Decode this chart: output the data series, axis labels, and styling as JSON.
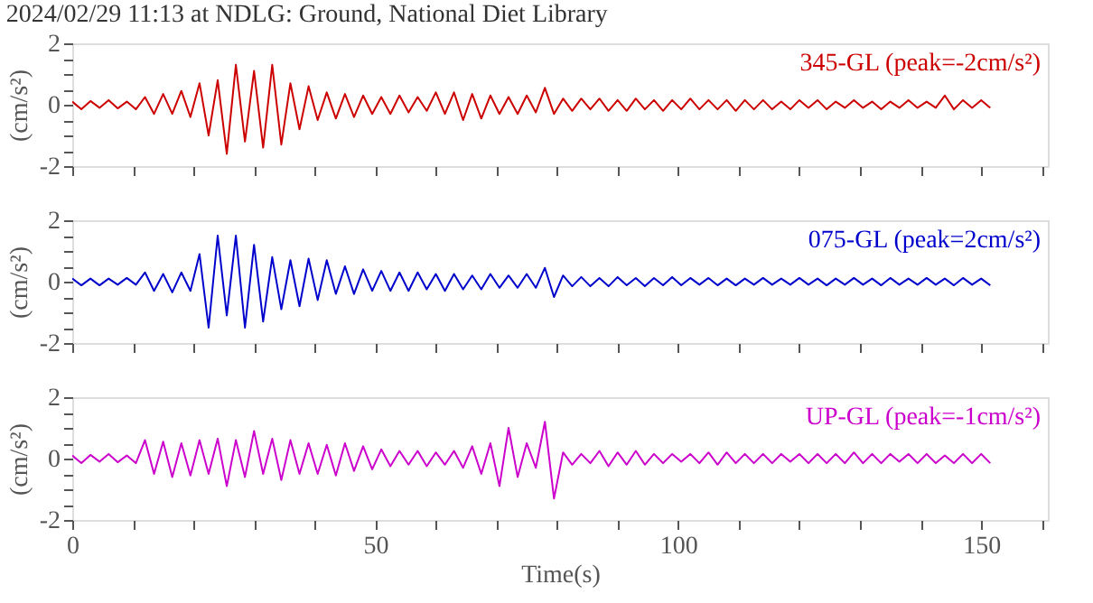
{
  "chart_data": [
    {
      "type": "line",
      "title": "2024/02/29 11:13 at NDLG: Ground, National Diet Library",
      "ylabel": "(cm/s²)",
      "annotations": [
        "345-GL (peak=-2cm/s²)"
      ],
      "tick_labels": "y",
      "xlim": [
        0,
        161
      ],
      "xticks": [
        0,
        {
          "value": 10,
          "label": null
        },
        {
          "value": 20,
          "label": null
        },
        {
          "value": 30,
          "label": null
        },
        {
          "value": 40,
          "label": null
        },
        50,
        {
          "value": 60,
          "label": null
        },
        {
          "value": 70,
          "label": null
        },
        {
          "value": 80,
          "label": null
        },
        {
          "value": 90,
          "label": null
        },
        100,
        {
          "value": 110,
          "label": null
        },
        {
          "value": 120,
          "label": null
        },
        {
          "value": 130,
          "label": null
        },
        {
          "value": 140,
          "label": null
        },
        150,
        {
          "value": 160,
          "label": null
        }
      ],
      "ylim": [
        -2,
        2
      ],
      "yticks": [
        -2,
        {
          "value": -1.5,
          "label": null
        },
        {
          "value": -1,
          "label": null
        },
        {
          "value": -0.5,
          "label": null
        },
        0,
        {
          "value": 0.5,
          "label": null
        },
        {
          "value": 1,
          "label": null
        },
        {
          "value": 1.5,
          "label": null
        },
        2
      ],
      "x": [
        0,
        1.5,
        3,
        4.5,
        6,
        7.5,
        9,
        10.5,
        12,
        13.5,
        15,
        16.5,
        18,
        19.5,
        21,
        22.5,
        24,
        25.5,
        27,
        28.5,
        30,
        31.5,
        33,
        34.5,
        36,
        37.5,
        39,
        40.5,
        42,
        43.5,
        45,
        46.5,
        48,
        49.5,
        51,
        52.5,
        54,
        55.5,
        57,
        58.5,
        60,
        61.5,
        63,
        64.5,
        66,
        67.5,
        69,
        70.5,
        72,
        73.5,
        75,
        76.5,
        78,
        79.5,
        81,
        82.5,
        84,
        85.5,
        87,
        88.5,
        90,
        91.5,
        93,
        94.5,
        96,
        97.5,
        99,
        100.5,
        102,
        103.5,
        105,
        106.5,
        108,
        109.5,
        111,
        112.5,
        114,
        115.5,
        117,
        118.5,
        120,
        121.5,
        123,
        124.5,
        126,
        127.5,
        129,
        130.5,
        132,
        133.5,
        135,
        136.5,
        138,
        139.5,
        141,
        142.5,
        144,
        145.5,
        147,
        148.5,
        150,
        151.5
      ],
      "series": [
        {
          "color": "#cc0000",
          "values": [
            0.1,
            -0.15,
            0.12,
            -0.1,
            0.15,
            -0.12,
            0.1,
            -0.15,
            0.25,
            -0.3,
            0.35,
            -0.3,
            0.45,
            -0.4,
            0.7,
            -1.0,
            0.8,
            -1.6,
            1.3,
            -1.2,
            1.1,
            -1.4,
            1.3,
            -1.3,
            0.7,
            -0.8,
            0.6,
            -0.5,
            0.4,
            -0.45,
            0.35,
            -0.4,
            0.3,
            -0.3,
            0.25,
            -0.3,
            0.3,
            -0.25,
            0.25,
            -0.2,
            0.4,
            -0.3,
            0.4,
            -0.5,
            0.35,
            -0.45,
            0.3,
            -0.3,
            0.25,
            -0.3,
            0.3,
            -0.25,
            0.55,
            -0.3,
            0.2,
            -0.2,
            0.2,
            -0.15,
            0.2,
            -0.2,
            0.15,
            -0.2,
            0.2,
            -0.15,
            0.15,
            -0.2,
            0.15,
            -0.15,
            0.2,
            -0.15,
            0.15,
            -0.15,
            0.15,
            -0.2,
            0.15,
            -0.15,
            0.15,
            -0.15,
            0.1,
            -0.15,
            0.15,
            -0.1,
            0.15,
            -0.15,
            0.1,
            -0.1,
            0.15,
            -0.1,
            0.1,
            -0.15,
            0.1,
            -0.1,
            0.15,
            -0.1,
            0.1,
            -0.1,
            0.3,
            -0.15,
            0.15,
            -0.1,
            0.15,
            -0.1
          ]
        }
      ]
    },
    {
      "type": "line",
      "ylabel": "(cm/s²)",
      "annotations": [
        "075-GL (peak=2cm/s²)"
      ],
      "tick_labels": "y",
      "xlim": [
        0,
        161
      ],
      "xticks": [
        0,
        {
          "value": 10,
          "label": null
        },
        {
          "value": 20,
          "label": null
        },
        {
          "value": 30,
          "label": null
        },
        {
          "value": 40,
          "label": null
        },
        50,
        {
          "value": 60,
          "label": null
        },
        {
          "value": 70,
          "label": null
        },
        {
          "value": 80,
          "label": null
        },
        {
          "value": 90,
          "label": null
        },
        100,
        {
          "value": 110,
          "label": null
        },
        {
          "value": 120,
          "label": null
        },
        {
          "value": 130,
          "label": null
        },
        {
          "value": 140,
          "label": null
        },
        150,
        {
          "value": 160,
          "label": null
        }
      ],
      "ylim": [
        -2,
        2
      ],
      "yticks": [
        -2,
        {
          "value": -1.5,
          "label": null
        },
        {
          "value": -1,
          "label": null
        },
        {
          "value": -0.5,
          "label": null
        },
        0,
        {
          "value": 0.5,
          "label": null
        },
        {
          "value": 1,
          "label": null
        },
        {
          "value": 1.5,
          "label": null
        },
        2
      ],
      "x": [
        0,
        1.5,
        3,
        4.5,
        6,
        7.5,
        9,
        10.5,
        12,
        13.5,
        15,
        16.5,
        18,
        19.5,
        21,
        22.5,
        24,
        25.5,
        27,
        28.5,
        30,
        31.5,
        33,
        34.5,
        36,
        37.5,
        39,
        40.5,
        42,
        43.5,
        45,
        46.5,
        48,
        49.5,
        51,
        52.5,
        54,
        55.5,
        57,
        58.5,
        60,
        61.5,
        63,
        64.5,
        66,
        67.5,
        69,
        70.5,
        72,
        73.5,
        75,
        76.5,
        78,
        79.5,
        81,
        82.5,
        84,
        85.5,
        87,
        88.5,
        90,
        91.5,
        93,
        94.5,
        96,
        97.5,
        99,
        100.5,
        102,
        103.5,
        105,
        106.5,
        108,
        109.5,
        111,
        112.5,
        114,
        115.5,
        117,
        118.5,
        120,
        121.5,
        123,
        124.5,
        126,
        127.5,
        129,
        130.5,
        132,
        133.5,
        135,
        136.5,
        138,
        139.5,
        141,
        142.5,
        144,
        145.5,
        147,
        148.5,
        150,
        151.5
      ],
      "series": [
        {
          "color": "#0000cc",
          "values": [
            0.1,
            -0.12,
            0.1,
            -0.12,
            0.1,
            -0.1,
            0.12,
            -0.1,
            0.3,
            -0.3,
            0.25,
            -0.35,
            0.3,
            -0.3,
            0.9,
            -1.5,
            1.5,
            -1.1,
            1.5,
            -1.5,
            1.2,
            -1.3,
            0.8,
            -0.9,
            0.7,
            -0.8,
            0.75,
            -0.6,
            0.7,
            -0.4,
            0.5,
            -0.4,
            0.4,
            -0.3,
            0.35,
            -0.3,
            0.3,
            -0.3,
            0.3,
            -0.25,
            0.25,
            -0.3,
            0.25,
            -0.25,
            0.2,
            -0.25,
            0.25,
            -0.2,
            0.2,
            -0.2,
            0.25,
            -0.2,
            0.45,
            -0.5,
            0.2,
            -0.15,
            0.15,
            -0.15,
            0.12,
            -0.15,
            0.15,
            -0.12,
            0.12,
            -0.15,
            0.12,
            -0.12,
            0.15,
            -0.12,
            0.12,
            -0.1,
            0.12,
            -0.12,
            0.1,
            -0.12,
            0.1,
            -0.1,
            0.12,
            -0.1,
            0.1,
            -0.1,
            0.12,
            -0.1,
            0.1,
            -0.12,
            0.1,
            -0.1,
            0.12,
            -0.1,
            0.1,
            -0.12,
            0.12,
            -0.1,
            0.1,
            -0.1,
            0.12,
            -0.1,
            0.1,
            -0.12,
            0.12,
            -0.1,
            0.1,
            -0.12
          ]
        }
      ]
    },
    {
      "type": "line",
      "ylabel": "(cm/s²)",
      "xlabel": "Time(s)",
      "annotations": [
        "UP-GL (peak=-1cm/s²)"
      ],
      "xlim": [
        0,
        161
      ],
      "xticks": [
        0,
        {
          "value": 10,
          "label": null
        },
        {
          "value": 20,
          "label": null
        },
        {
          "value": 30,
          "label": null
        },
        {
          "value": 40,
          "label": null
        },
        50,
        {
          "value": 60,
          "label": null
        },
        {
          "value": 70,
          "label": null
        },
        {
          "value": 80,
          "label": null
        },
        {
          "value": 90,
          "label": null
        },
        100,
        {
          "value": 110,
          "label": null
        },
        {
          "value": 120,
          "label": null
        },
        {
          "value": 130,
          "label": null
        },
        {
          "value": 140,
          "label": null
        },
        150,
        {
          "value": 160,
          "label": null
        }
      ],
      "ylim": [
        -2,
        2
      ],
      "yticks": [
        -2,
        {
          "value": -1.5,
          "label": null
        },
        {
          "value": -1,
          "label": null
        },
        {
          "value": -0.5,
          "label": null
        },
        0,
        {
          "value": 0.5,
          "label": null
        },
        {
          "value": 1,
          "label": null
        },
        {
          "value": 1.5,
          "label": null
        },
        2
      ],
      "x": [
        0,
        1.5,
        3,
        4.5,
        6,
        7.5,
        9,
        10.5,
        12,
        13.5,
        15,
        16.5,
        18,
        19.5,
        21,
        22.5,
        24,
        25.5,
        27,
        28.5,
        30,
        31.5,
        33,
        34.5,
        36,
        37.5,
        39,
        40.5,
        42,
        43.5,
        45,
        46.5,
        48,
        49.5,
        51,
        52.5,
        54,
        55.5,
        57,
        58.5,
        60,
        61.5,
        63,
        64.5,
        66,
        67.5,
        69,
        70.5,
        72,
        73.5,
        75,
        76.5,
        78,
        79.5,
        81,
        82.5,
        84,
        85.5,
        87,
        88.5,
        90,
        91.5,
        93,
        94.5,
        96,
        97.5,
        99,
        100.5,
        102,
        103.5,
        105,
        106.5,
        108,
        109.5,
        111,
        112.5,
        114,
        115.5,
        117,
        118.5,
        120,
        121.5,
        123,
        124.5,
        126,
        127.5,
        129,
        130.5,
        132,
        133.5,
        135,
        136.5,
        138,
        139.5,
        141,
        142.5,
        144,
        145.5,
        147,
        148.5,
        150,
        151.5
      ],
      "series": [
        {
          "color": "#cc00cc",
          "values": [
            0.1,
            -0.15,
            0.12,
            -0.1,
            0.15,
            -0.12,
            0.1,
            -0.15,
            0.6,
            -0.5,
            0.55,
            -0.6,
            0.5,
            -0.55,
            0.6,
            -0.5,
            0.65,
            -0.9,
            0.6,
            -0.6,
            0.9,
            -0.5,
            0.65,
            -0.7,
            0.6,
            -0.5,
            0.5,
            -0.5,
            0.45,
            -0.55,
            0.5,
            -0.4,
            0.4,
            -0.35,
            0.3,
            -0.25,
            0.25,
            -0.2,
            0.25,
            -0.25,
            0.2,
            -0.2,
            0.25,
            -0.3,
            0.4,
            -0.5,
            0.5,
            -0.9,
            1.0,
            -0.6,
            0.5,
            -0.3,
            1.2,
            -1.3,
            0.2,
            -0.2,
            0.15,
            -0.15,
            0.25,
            -0.25,
            0.2,
            -0.2,
            0.25,
            -0.2,
            0.15,
            -0.15,
            0.15,
            -0.1,
            0.15,
            -0.15,
            0.2,
            -0.2,
            0.2,
            -0.15,
            0.15,
            -0.15,
            0.15,
            -0.15,
            0.15,
            -0.1,
            0.15,
            -0.15,
            0.15,
            -0.15,
            0.15,
            -0.15,
            0.2,
            -0.15,
            0.15,
            -0.15,
            0.15,
            -0.1,
            0.15,
            -0.15,
            0.15,
            -0.15,
            0.1,
            -0.15,
            0.15,
            -0.15,
            0.15,
            -0.15
          ]
        }
      ]
    }
  ]
}
